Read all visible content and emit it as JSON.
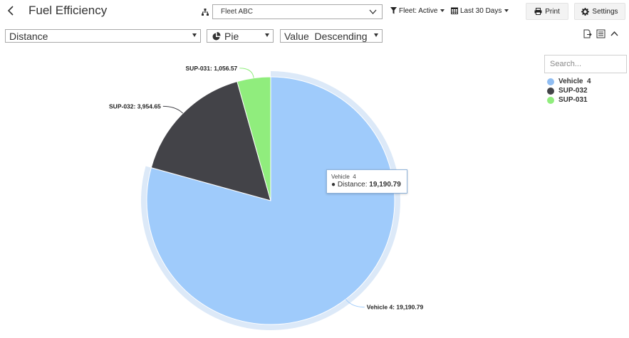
{
  "header": {
    "title": "Fuel Efficiency",
    "fleet_value": "Fleet ABC",
    "filter_label": "Fleet: Active",
    "date_label": "Last 30 Days",
    "print_label": "Print",
    "settings_label": "Settings"
  },
  "toolbar": {
    "measure": "Distance",
    "chart_type": "Pie",
    "sort": "Value  Descending"
  },
  "legend": {
    "search_placeholder": "Search...",
    "items": [
      {
        "label": "Vehicle  4",
        "color": "#90bdf2"
      },
      {
        "label": "SUP-032",
        "color": "#434348"
      },
      {
        "label": "SUP-031",
        "color": "#90ed7d"
      }
    ]
  },
  "tooltip": {
    "title": "Vehicle  4",
    "series": "Distance:",
    "value": "19,190.79"
  },
  "chart_data": {
    "type": "pie",
    "series": [
      {
        "name": "Distance",
        "slices": [
          {
            "label": "Vehicle  4",
            "value": 19190.79,
            "display": "Vehicle  4:  19,190.79",
            "color": "#9fcbfb"
          },
          {
            "label": "SUP-032",
            "value": 3954.65,
            "display": "SUP-032:  3,954.65",
            "color": "#434348"
          },
          {
            "label": "SUP-031",
            "value": 1056.57,
            "display": "SUP-031:  1,056.57",
            "color": "#90ed7d"
          }
        ]
      }
    ],
    "hover_index": 0,
    "halo_color": "#dce9f8"
  }
}
